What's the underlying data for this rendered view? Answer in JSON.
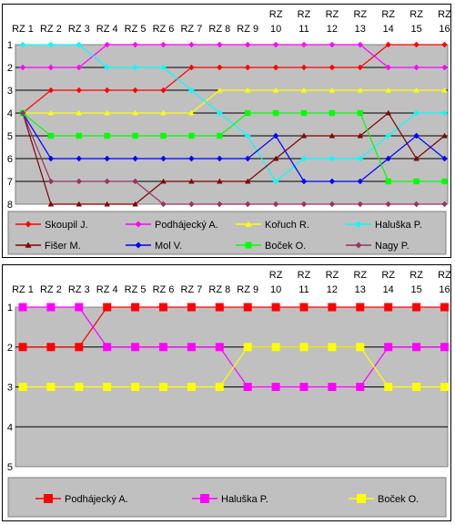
{
  "chart_data": [
    {
      "type": "line",
      "title": "",
      "xlabel": "",
      "ylabel": "",
      "categories": [
        [
          "RZ 1"
        ],
        [
          "RZ 2"
        ],
        [
          "RZ 3"
        ],
        [
          "RZ 4"
        ],
        [
          "RZ 5"
        ],
        [
          "RZ 6"
        ],
        [
          "RZ 7"
        ],
        [
          "RZ 8"
        ],
        [
          "RZ 9"
        ],
        [
          "RZ",
          "10"
        ],
        [
          "RZ",
          "11"
        ],
        [
          "RZ",
          "12"
        ],
        [
          "RZ",
          "13"
        ],
        [
          "RZ",
          "14"
        ],
        [
          "RZ",
          "15"
        ],
        [
          "RZ",
          "16"
        ]
      ],
      "yticks": [
        "1",
        "2",
        "3",
        "4",
        "5",
        "6",
        "7",
        "8"
      ],
      "ylim": [
        1,
        8
      ],
      "y_reversed": true,
      "grid": "horizontal",
      "legend_position": "bottom",
      "series": [
        {
          "name": "Skoupil J.",
          "color": "#FF0000",
          "marker": "diamond",
          "values": [
            4,
            3,
            3,
            3,
            3,
            3,
            2,
            2,
            2,
            2,
            2,
            2,
            2,
            1,
            1,
            1
          ]
        },
        {
          "name": "Podhájecký A.",
          "color": "#FF00FF",
          "marker": "diamond",
          "values": [
            2,
            2,
            2,
            1,
            1,
            1,
            1,
            1,
            1,
            1,
            1,
            1,
            1,
            2,
            2,
            2
          ]
        },
        {
          "name": "Kořuch R.",
          "color": "#FFFF00",
          "marker": "triangle",
          "values": [
            4,
            4,
            4,
            4,
            4,
            4,
            4,
            3,
            3,
            3,
            3,
            3,
            3,
            3,
            3,
            3
          ]
        },
        {
          "name": "Haluška P.",
          "color": "#00FFFF",
          "marker": "diamond",
          "values": [
            1,
            1,
            1,
            2,
            2,
            2,
            3,
            4,
            5,
            7,
            6,
            6,
            6,
            5,
            4,
            4
          ]
        },
        {
          "name": "Fišer M.",
          "color": "#800000",
          "marker": "triangle",
          "values": [
            4,
            8,
            8,
            8,
            8,
            7,
            7,
            7,
            7,
            6,
            5,
            5,
            5,
            4,
            6,
            5
          ]
        },
        {
          "name": "Mol V.",
          "color": "#0000FF",
          "marker": "diamond",
          "values": [
            4,
            6,
            6,
            6,
            6,
            6,
            6,
            6,
            6,
            5,
            7,
            7,
            7,
            6,
            5,
            6
          ]
        },
        {
          "name": "Boček O.",
          "color": "#00FF00",
          "marker": "square",
          "values": [
            4,
            5,
            5,
            5,
            5,
            5,
            5,
            5,
            4,
            4,
            4,
            4,
            4,
            7,
            7,
            7
          ]
        },
        {
          "name": "Nagy P.",
          "color": "#993366",
          "marker": "diamond",
          "values": [
            4,
            7,
            7,
            7,
            7,
            8,
            8,
            8,
            8,
            8,
            8,
            8,
            8,
            8,
            8,
            8
          ]
        }
      ]
    },
    {
      "type": "line",
      "title": "",
      "xlabel": "",
      "ylabel": "",
      "categories": [
        [
          "RZ 1"
        ],
        [
          "RZ 2"
        ],
        [
          "RZ 3"
        ],
        [
          "RZ 4"
        ],
        [
          "RZ 5"
        ],
        [
          "RZ 6"
        ],
        [
          "RZ 7"
        ],
        [
          "RZ 8"
        ],
        [
          "RZ 9"
        ],
        [
          "RZ",
          "10"
        ],
        [
          "RZ",
          "11"
        ],
        [
          "RZ",
          "12"
        ],
        [
          "RZ",
          "13"
        ],
        [
          "RZ",
          "14"
        ],
        [
          "RZ",
          "15"
        ],
        [
          "RZ",
          "16"
        ]
      ],
      "yticks": [
        "1",
        "2",
        "3",
        "4",
        "5"
      ],
      "ylim": [
        1,
        5
      ],
      "y_reversed": true,
      "grid": "horizontal",
      "legend_position": "bottom",
      "series": [
        {
          "name": "Podhájecký A.",
          "color": "#FF0000",
          "marker": "square",
          "values": [
            2,
            2,
            2,
            1,
            1,
            1,
            1,
            1,
            1,
            1,
            1,
            1,
            1,
            1,
            1,
            1
          ]
        },
        {
          "name": "Haluška P.",
          "color": "#FF00FF",
          "marker": "square",
          "values": [
            1,
            1,
            1,
            2,
            2,
            2,
            2,
            2,
            3,
            3,
            3,
            3,
            3,
            2,
            2,
            2
          ]
        },
        {
          "name": "Boček O.",
          "color": "#FFFF00",
          "marker": "square",
          "values": [
            3,
            3,
            3,
            3,
            3,
            3,
            3,
            3,
            2,
            2,
            2,
            2,
            2,
            3,
            3,
            3
          ]
        }
      ]
    }
  ]
}
